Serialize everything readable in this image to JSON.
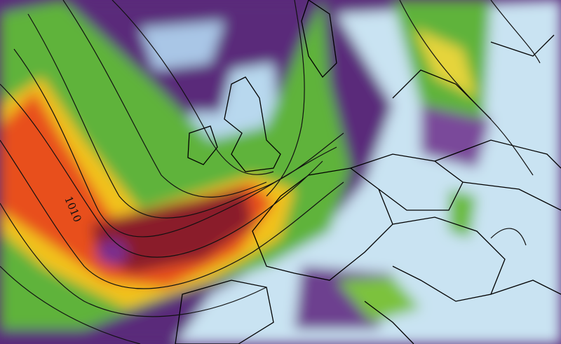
{
  "map": {
    "isobar_labels": [
      "1010"
    ],
    "colors": {
      "background": "#5a2a7a",
      "calm": "#c9e3f2",
      "moderate": "#5fb33a",
      "strong": "#f2c21a",
      "very_strong": "#e8501c",
      "extreme": "#8a1d2a",
      "core": "#7a2f8f"
    }
  }
}
